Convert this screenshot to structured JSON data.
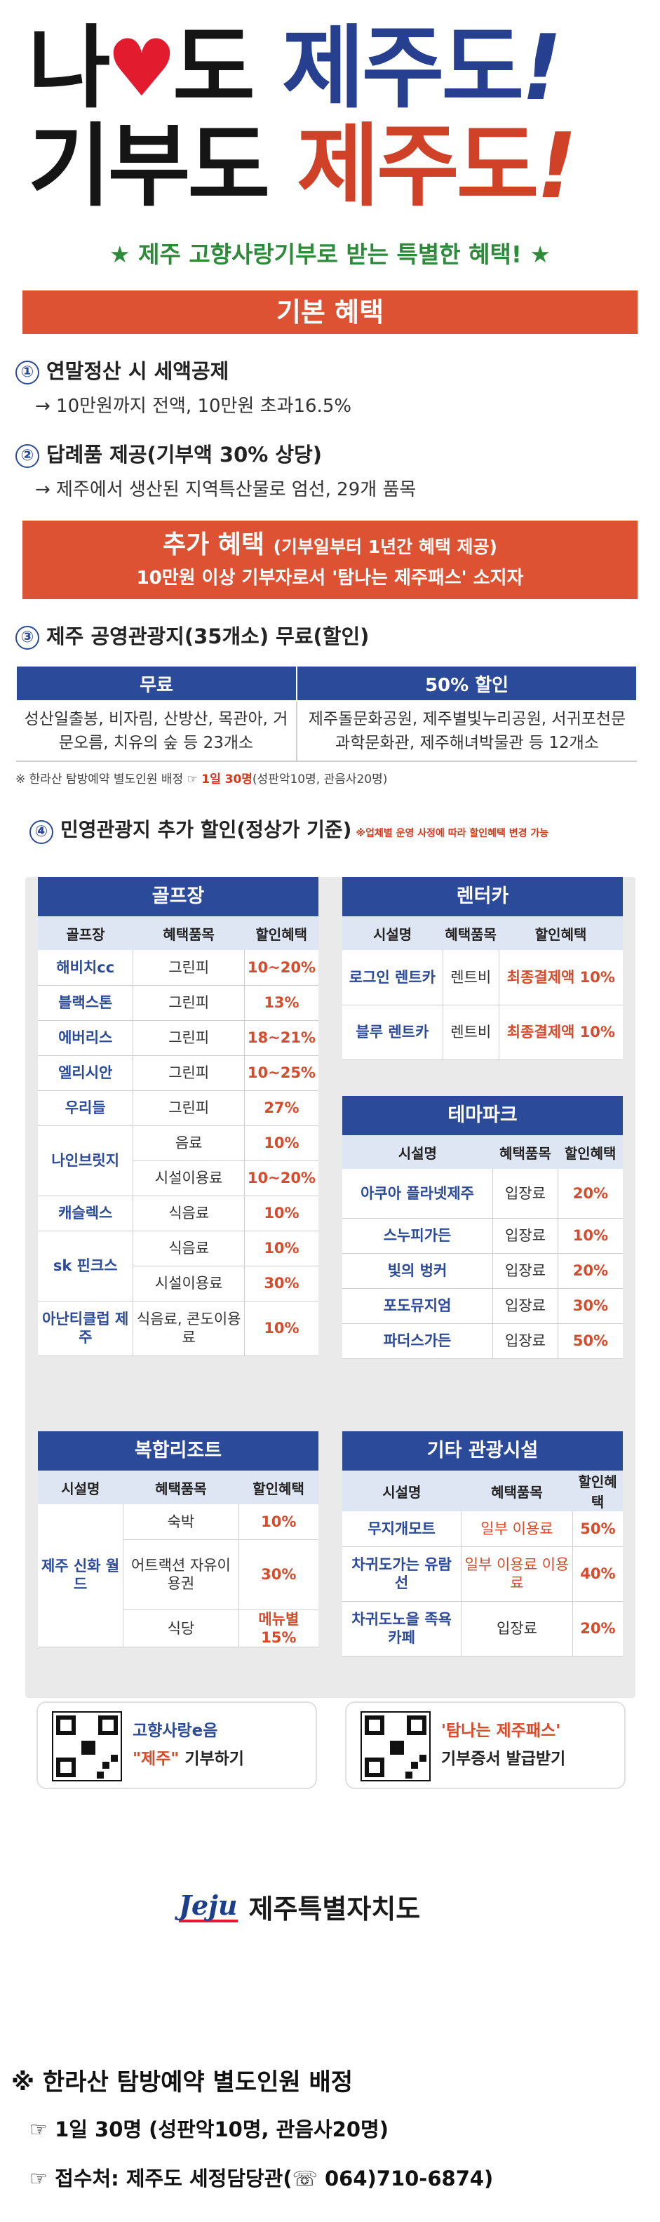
{
  "hero": {
    "l1_a": "나",
    "l1_b": "도",
    "l1_blue": "제주도",
    "l2_a": "기부도",
    "l2_red": "제주도",
    "excl": "!"
  },
  "subtitle": "★ 제주 고향사랑기부로 받는 특별한 혜택! ★",
  "basic": {
    "title": "기본 혜택",
    "items": [
      {
        "num": "①",
        "title": "연말정산 시 세액공제",
        "desc": "→ 10만원까지 전액, 10만원 초과16.5%"
      },
      {
        "num": "②",
        "title": "답례품 제공(기부액 30% 상당)",
        "desc": "→ 제주에서 생산된 지역특산물로 엄선, 29개 품목"
      }
    ]
  },
  "extra": {
    "title": "추가 혜택",
    "title_sub": "(기부일부터 1년간 혜택 제공)",
    "line2": "10만원 이상 기부자로서 '탐나는 제주패스' 소지자"
  },
  "item3": {
    "num": "③",
    "title": "제주 공영관광지(35개소) 무료(할인)",
    "headers": [
      "무료",
      "50% 할인"
    ],
    "free": "성산일출봉, 비자림, 산방산, 목관아, 거문오름, 치유의 숲 등 23개소",
    "half": "제주돌문화공원, 제주별빛누리공원, 서귀포천문과학문화관, 제주해녀박물관 등 12개소",
    "note_pre": "※ 한라산 탐방예약 별도인원 배정 ☞",
    "note_hl": "1일 30명",
    "note_post": "(성판악10명, 관음사20명)"
  },
  "item4": {
    "num": "④",
    "title": "민영관광지 추가 할인(정상가 기준)",
    "note": "※업체별 운영 사정에 따라 할인혜택 변경 가능"
  },
  "golf": {
    "title": "골프장",
    "headers": [
      "골프장",
      "혜택품목",
      "할인혜택"
    ],
    "rows": [
      [
        "해비치cc",
        "그린피",
        "10~20%"
      ],
      [
        "블랙스톤",
        "그린피",
        "13%"
      ],
      [
        "에버리스",
        "그린피",
        "18~21%"
      ],
      [
        "엘리시안",
        "그린피",
        "10~25%"
      ],
      [
        "우리들",
        "그린피",
        "27%"
      ],
      [
        "나인브릿지",
        "음료",
        "10%"
      ],
      [
        "",
        "시설이용료",
        "10~20%"
      ],
      [
        "캐슬렉스",
        "식음료",
        "10%"
      ],
      [
        "sk 핀크스",
        "식음료",
        "10%"
      ],
      [
        "",
        "시설이용료",
        "30%"
      ],
      [
        "아난티클럽 제주",
        "식음료, 콘도이용료",
        "10%"
      ]
    ]
  },
  "rentcar": {
    "title": "렌터카",
    "headers": [
      "시설명",
      "혜택품목",
      "할인혜택"
    ],
    "rows": [
      [
        "로그인 렌트카",
        "렌트비",
        "최종결제액 10%"
      ],
      [
        "블루 렌트카",
        "렌트비",
        "최종결제액 10%"
      ]
    ]
  },
  "theme": {
    "title": "테마파크",
    "headers": [
      "시설명",
      "혜택품목",
      "할인혜택"
    ],
    "rows": [
      [
        "아쿠아 플라넷제주",
        "입장료",
        "20%"
      ],
      [
        "스누피가든",
        "입장료",
        "10%"
      ],
      [
        "빛의 벙커",
        "입장료",
        "20%"
      ],
      [
        "포도뮤지엄",
        "입장료",
        "30%"
      ],
      [
        "파더스가든",
        "입장료",
        "50%"
      ]
    ]
  },
  "resort": {
    "title": "복합리조트",
    "headers": [
      "시설명",
      "혜택품목",
      "할인혜택"
    ],
    "name": "제주 신화 월드",
    "rows": [
      [
        "숙박",
        "10%"
      ],
      [
        "어트랙션 자유이용권",
        "30%"
      ],
      [
        "식당",
        "메뉴별 15%"
      ]
    ]
  },
  "other": {
    "title": "기타 관광시설",
    "headers": [
      "시설명",
      "혜택품목",
      "할인혜택"
    ],
    "rows": [
      [
        "무지개모트",
        "일부 이용료",
        "50%"
      ],
      [
        "차귀도가는 유람선",
        "일부 이용료 이용료",
        "40%"
      ],
      [
        "차귀도노을 족욕카페",
        "입장료",
        "20%"
      ]
    ]
  },
  "qr": {
    "left_l1": "고향사랑e음",
    "left_l2_q": "\"제주\"",
    "left_l2": "기부하기",
    "right_l1": "'탐나는 제주패스'",
    "right_l2": "기부증서 발급받기"
  },
  "logo": {
    "mark": "Jeju",
    "text": "제주특별자치도"
  },
  "footer": {
    "f1": "※ 한라산 탐방예약 별도인원 배정",
    "f2": "☞ 1일 30명 (성판악10명, 관음사20명)",
    "f3": "☞ 접수처: 제주도 세정담당관(☏ 064)710-6874)"
  },
  "colors": {
    "blue": "#2c4a9a",
    "red": "#de5234",
    "green": "#2e8a3a",
    "heart": "#e21b2f"
  }
}
